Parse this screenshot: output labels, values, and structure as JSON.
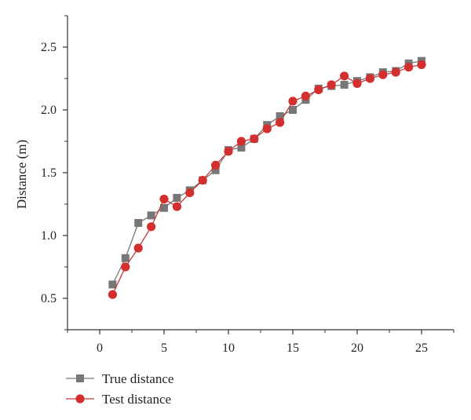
{
  "chart_data": {
    "type": "line",
    "title": "",
    "xlabel": "",
    "ylabel": "Distance (m)",
    "xlim": [
      -2.5,
      27.5
    ],
    "ylim": [
      0.25,
      2.75
    ],
    "xticks": [
      0,
      5,
      10,
      15,
      20,
      25
    ],
    "xtick_labels": [
      "0",
      "5",
      "10",
      "15",
      "20",
      "25"
    ],
    "yticks": [
      0.5,
      1.0,
      1.5,
      2.0,
      2.5
    ],
    "ytick_labels": [
      "0.5",
      "1.0",
      "1.5",
      "2.0",
      "2.5"
    ],
    "grid": false,
    "legend_position": "bottom-left",
    "x": [
      1,
      2,
      3,
      4,
      5,
      6,
      7,
      8,
      9,
      10,
      11,
      12,
      13,
      14,
      15,
      16,
      17,
      18,
      19,
      20,
      21,
      22,
      23,
      24,
      25
    ],
    "series": [
      {
        "name": "True distance",
        "marker": "square",
        "color": "#777777",
        "line_color": "#777777",
        "values": [
          0.61,
          0.82,
          1.1,
          1.16,
          1.22,
          1.3,
          1.36,
          1.44,
          1.52,
          1.68,
          1.7,
          1.77,
          1.88,
          1.95,
          2.0,
          2.08,
          2.17,
          2.19,
          2.2,
          2.23,
          2.26,
          2.3,
          2.31,
          2.37,
          2.39
        ]
      },
      {
        "name": "Test distance",
        "marker": "circle",
        "color": "#d42f2f",
        "line_color": "#c43a3a",
        "values": [
          0.53,
          0.75,
          0.9,
          1.07,
          1.29,
          1.23,
          1.34,
          1.44,
          1.56,
          1.67,
          1.75,
          1.77,
          1.85,
          1.9,
          2.07,
          2.11,
          2.16,
          2.2,
          2.27,
          2.21,
          2.25,
          2.28,
          2.3,
          2.34,
          2.36
        ]
      }
    ]
  }
}
